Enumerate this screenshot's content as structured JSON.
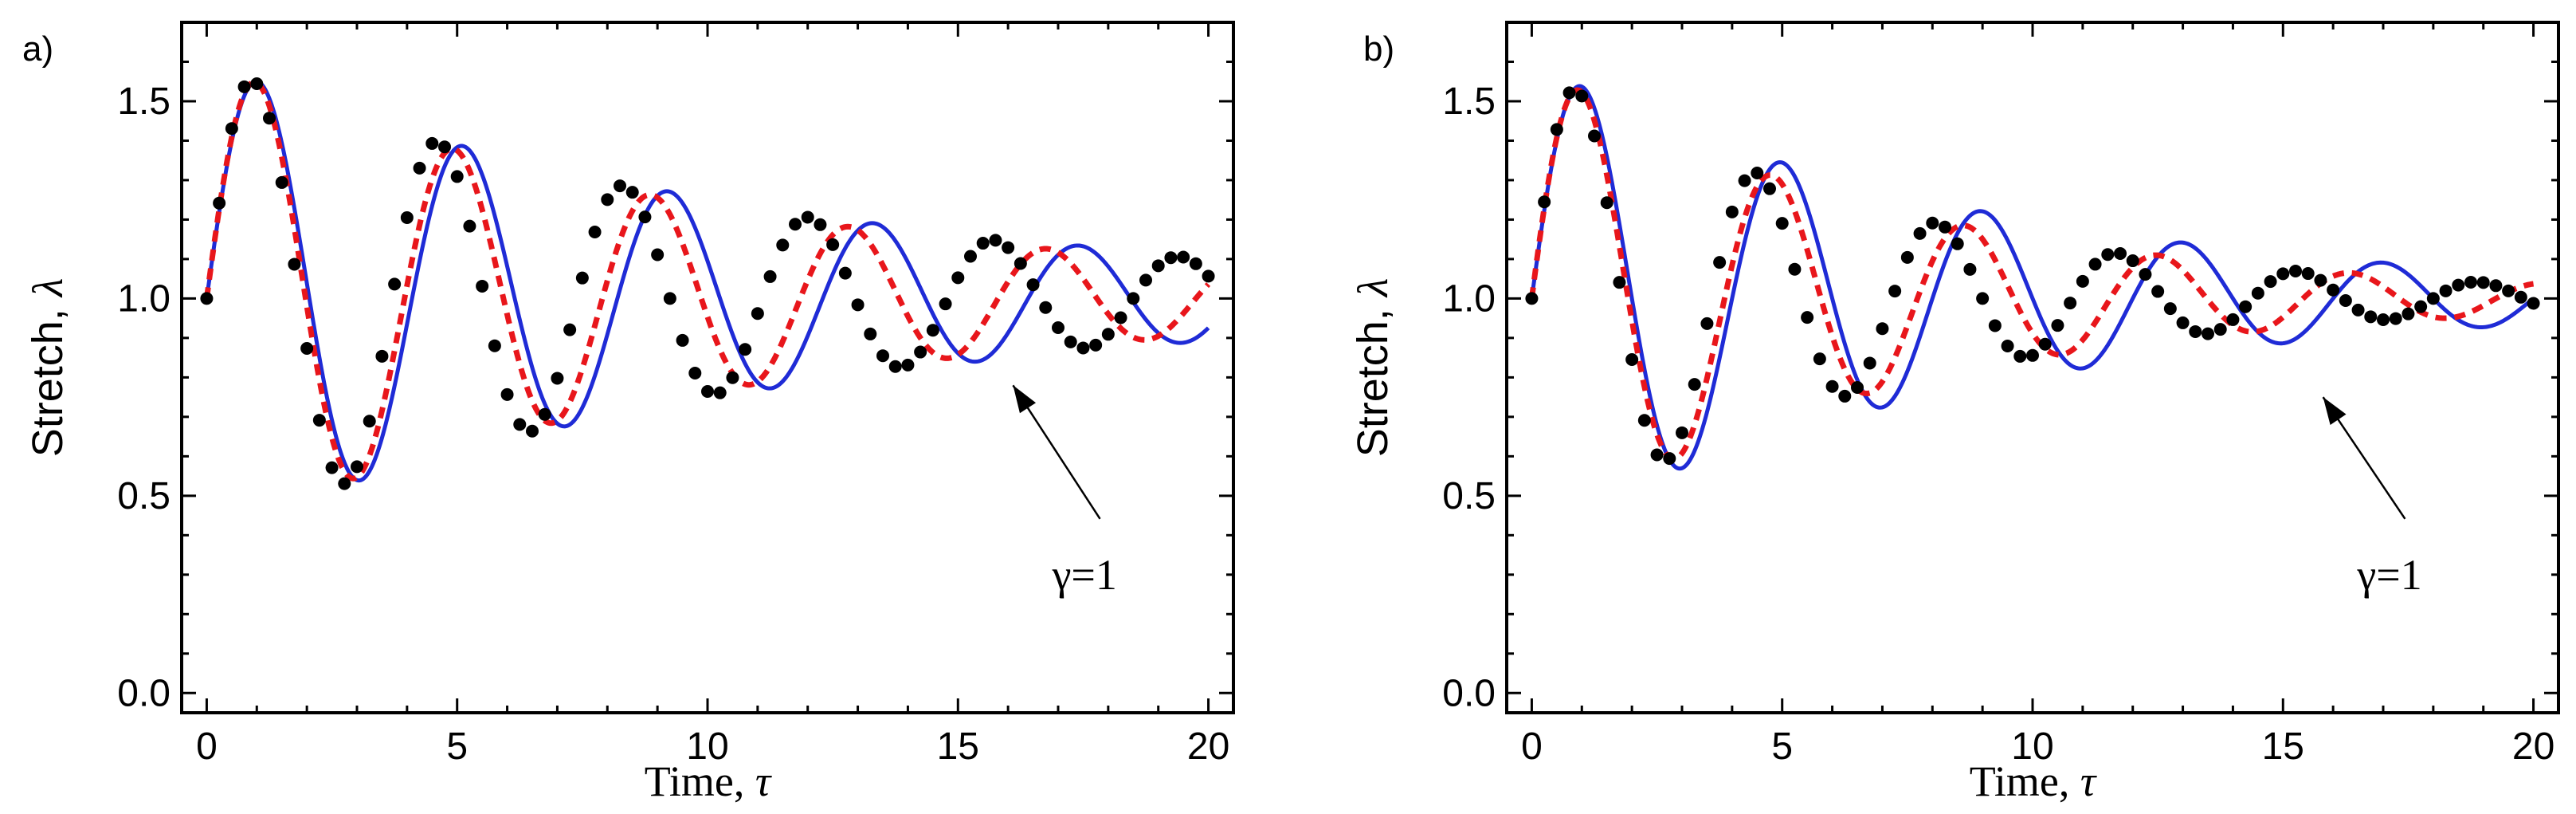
{
  "chart_data": [
    {
      "type": "line",
      "panel_label": "a)",
      "xlabel": "Time, ",
      "xlabel_symbol": "τ",
      "ylabel": "Stretch, ",
      "ylabel_symbol": "λ",
      "xlim": [
        -0.5,
        20.5
      ],
      "ylim": [
        -0.05,
        1.7
      ],
      "xticks": [
        0,
        5,
        10,
        15,
        20
      ],
      "xtick_labels": [
        "0",
        "5",
        "10",
        "15",
        "20"
      ],
      "yticks": [
        0,
        0.5,
        1,
        1.5
      ],
      "ytick_labels": [
        "0.0",
        "0.5",
        "1.0",
        "1.5"
      ],
      "annotation": {
        "text": "γ=1",
        "points_to": [
          16.1,
          0.78
        ],
        "text_at": [
          17.2,
          0.3
        ]
      },
      "series": [
        {
          "name": "blue solid",
          "style": "solid",
          "color": "#1f2bd6",
          "model": {
            "period": 4.1,
            "a0": 0.6,
            "damp": 0.086,
            "base": 1.0,
            "base_growth": 0.0
          }
        },
        {
          "name": "red dashed",
          "style": "dashed",
          "color": "#e8161b",
          "model": {
            "period": 3.95,
            "a0": 0.6,
            "damp": 0.093,
            "base": 1.0,
            "base_growth": 0.0
          }
        },
        {
          "name": "black dots",
          "style": "dots",
          "color": "#000000",
          "model": {
            "period": 3.7,
            "a0": 0.6,
            "damp": 0.089,
            "base": 1.0,
            "base_growth": 0.0,
            "dt": 0.25
          }
        }
      ]
    },
    {
      "type": "line",
      "panel_label": "b)",
      "xlabel": "Time, ",
      "xlabel_symbol": "τ",
      "ylabel": "Stretch, ",
      "ylabel_symbol": "λ",
      "xlim": [
        -0.5,
        20.5
      ],
      "ylim": [
        -0.05,
        1.7
      ],
      "xticks": [
        0,
        5,
        10,
        15,
        20
      ],
      "xtick_labels": [
        "0",
        "5",
        "10",
        "15",
        "20"
      ],
      "yticks": [
        0,
        0.5,
        1,
        1.5
      ],
      "ytick_labels": [
        "0.0",
        "0.5",
        "1.0",
        "1.5"
      ],
      "annotation": {
        "text": "γ=1",
        "points_to": [
          15.8,
          0.75
        ],
        "text_at": [
          16.8,
          0.3
        ]
      },
      "series": [
        {
          "name": "blue solid",
          "style": "solid",
          "color": "#1f2bd6",
          "model": {
            "period": 4.0,
            "a0": 0.6,
            "damp": 0.111,
            "base": 1.0,
            "base_growth": 0.0
          }
        },
        {
          "name": "red dashed",
          "style": "dashed",
          "color": "#e8161b",
          "model": {
            "period": 3.85,
            "a0": 0.6,
            "damp": 0.136,
            "base": 1.0,
            "base_growth": 0.0
          }
        },
        {
          "name": "black dots",
          "style": "dots",
          "color": "#000000",
          "model": {
            "period": 3.6,
            "a0": 0.6,
            "damp": 0.141,
            "base": 1.0,
            "base_growth": 0.0,
            "dt": 0.25
          }
        }
      ]
    }
  ]
}
